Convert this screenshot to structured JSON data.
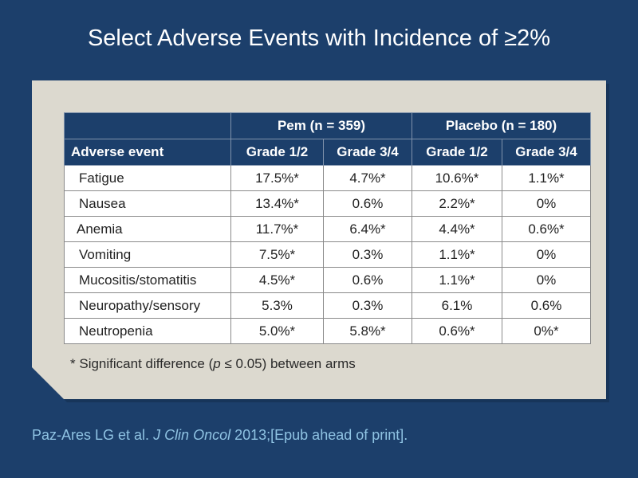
{
  "title": "Select Adverse Events with Incidence of ≥2%",
  "table": {
    "group_headers": [
      "Pem (n = 359)",
      "Placebo (n = 180)"
    ],
    "row_header": "Adverse event",
    "sub_headers": [
      "Grade 1/2",
      "Grade 3/4",
      "Grade 1/2",
      "Grade 3/4"
    ],
    "rows": [
      {
        "event": "Fatigue",
        "values": [
          "17.5%*",
          "4.7%*",
          "10.6%*",
          "1.1%*"
        ]
      },
      {
        "event": "Nausea",
        "values": [
          "13.4%*",
          "0.6%",
          "2.2%*",
          "0%"
        ]
      },
      {
        "event": "Anemia",
        "values": [
          "11.7%*",
          "6.4%*",
          "4.4%*",
          "0.6%*"
        ]
      },
      {
        "event": "Vomiting",
        "values": [
          "7.5%*",
          "0.3%",
          "1.1%*",
          "0%"
        ]
      },
      {
        "event": "Mucositis/stomatitis",
        "values": [
          "4.5%*",
          "0.6%",
          "1.1%*",
          "0%"
        ]
      },
      {
        "event": "Neuropathy/sensory",
        "values": [
          "5.3%",
          "0.3%",
          "6.1%",
          "0.6%"
        ]
      },
      {
        "event": "Neutropenia",
        "values": [
          "5.0%*",
          "5.8%*",
          "0.6%*",
          "0%*"
        ]
      }
    ]
  },
  "footnote": {
    "marker": "*",
    "before": "Significant difference (",
    "italic": "p",
    "after": " ≤ 0.05) between arms"
  },
  "citation": {
    "before": "Paz-Ares LG et al. ",
    "journal": "J Clin Oncol",
    "after": " 2013;[Epub ahead of print]."
  }
}
